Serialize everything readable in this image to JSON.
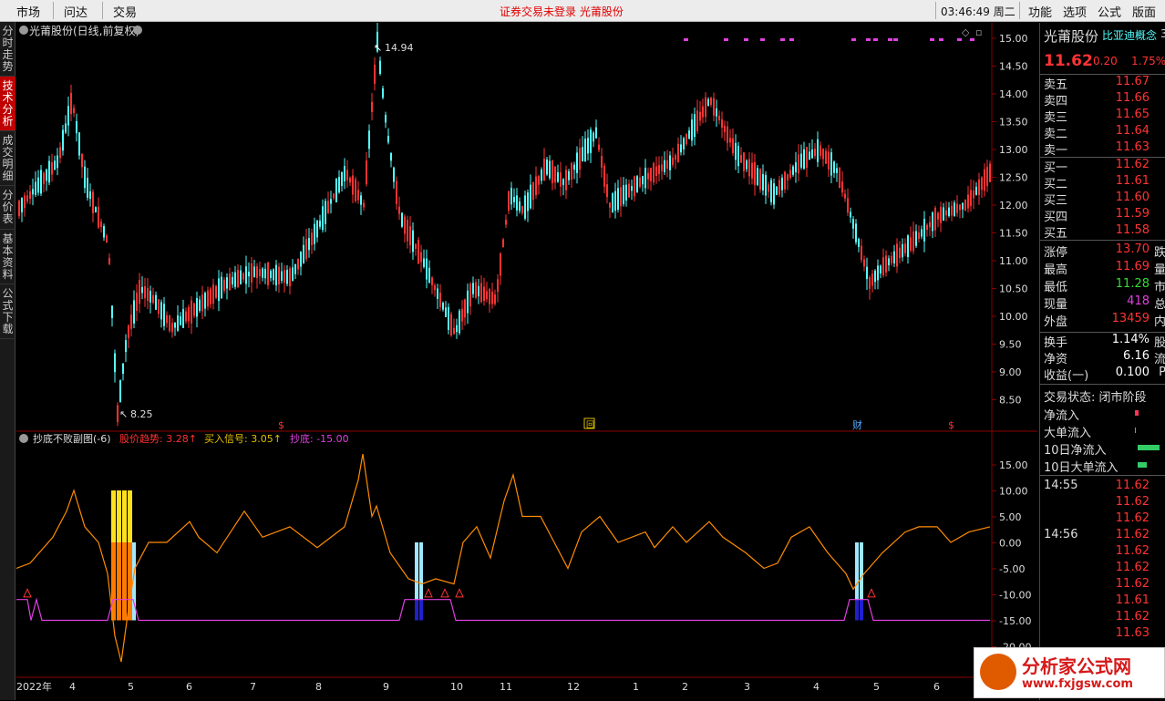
{
  "topbar": {
    "menu": [
      "市场",
      "问达",
      "交易"
    ],
    "center_text": "证券交易未登录  光莆股份",
    "clock": "03:46:49 周二",
    "right_menu": [
      "功能",
      "选项",
      "公式",
      "版面"
    ]
  },
  "left_tabs": [
    "分时走势",
    "技术分析",
    "成交明细",
    "分价表",
    "基本资料",
    "公式下载"
  ],
  "main_chart": {
    "title": "光莆股份(日线,前复权)",
    "high_label": "14.94",
    "low_label": "8.25",
    "y_ticks": [
      "15.00",
      "14.50",
      "14.00",
      "13.50",
      "13.00",
      "12.50",
      "12.00",
      "11.50",
      "11.00",
      "10.50",
      "10.00",
      "9.50",
      "9.00",
      "8.50"
    ],
    "event_markers": [
      "$",
      "回",
      "财",
      "$"
    ]
  },
  "sub_chart": {
    "title": "抄底不败副图(-6)",
    "trend_label": "股价趋势: 3.28↑",
    "buy_label": "买入信号: 3.05↑",
    "bottom_label": "抄底: -15.00",
    "y_ticks": [
      "15.00",
      "10.00",
      "5.00",
      "0.00",
      "-5.00",
      "-10.00",
      "-15.00",
      "-20.00"
    ]
  },
  "x_axis": [
    "2022年",
    "4",
    "5",
    "6",
    "7",
    "8",
    "9",
    "10",
    "11",
    "12",
    "1",
    "2",
    "3",
    "4",
    "5",
    "6"
  ],
  "quote": {
    "name": "光莆股份",
    "concept": "比亚迪概念",
    "concept_suffix": "3",
    "price": "11.62",
    "change": "0.20",
    "pct": "1.75%",
    "asks": [
      {
        "label": "卖五",
        "price": "11.67"
      },
      {
        "label": "卖四",
        "price": "11.66"
      },
      {
        "label": "卖三",
        "price": "11.65"
      },
      {
        "label": "卖二",
        "price": "11.64"
      },
      {
        "label": "卖一",
        "price": "11.63"
      }
    ],
    "bids": [
      {
        "label": "买一",
        "price": "11.62"
      },
      {
        "label": "买二",
        "price": "11.61"
      },
      {
        "label": "买三",
        "price": "11.60"
      },
      {
        "label": "买四",
        "price": "11.59"
      },
      {
        "label": "买五",
        "price": "11.58"
      }
    ],
    "stats": [
      {
        "label": "涨停",
        "value": "13.70",
        "color": "#ff3333",
        "suffix": "跌"
      },
      {
        "label": "最高",
        "value": "11.69",
        "color": "#ff3333",
        "suffix": "量"
      },
      {
        "label": "最低",
        "value": "11.28",
        "color": "#33dd33",
        "suffix": "市"
      },
      {
        "label": "现量",
        "value": "418",
        "color": "#e040e0",
        "suffix": "总"
      },
      {
        "label": "外盘",
        "value": "13459",
        "color": "#ff3333",
        "suffix": "内"
      }
    ],
    "stats2": [
      {
        "label": "换手",
        "value": "1.14%",
        "suffix": "股"
      },
      {
        "label": "净资",
        "value": "6.16",
        "suffix": "流"
      },
      {
        "label": "收益(一)",
        "value": "0.100",
        "suffix": "P"
      }
    ],
    "status_label": "交易状态: 闭市阶段",
    "flows": [
      {
        "label": "净流入",
        "color": "#ff3355"
      },
      {
        "label": "大单流入",
        "color": "#33cc66"
      },
      {
        "label": "10日净流入",
        "color": "#33cc66"
      },
      {
        "label": "10日大单流入",
        "color": "#33cc66"
      }
    ],
    "ticks": [
      {
        "time": "14:55",
        "price": "11.62"
      },
      {
        "time": "",
        "price": "11.62"
      },
      {
        "time": "",
        "price": "11.62"
      },
      {
        "time": "14:56",
        "price": "11.62"
      },
      {
        "time": "",
        "price": "11.62"
      },
      {
        "time": "",
        "price": "11.62"
      },
      {
        "time": "",
        "price": "11.62"
      },
      {
        "time": "",
        "price": "11.61"
      },
      {
        "time": "",
        "price": "11.62"
      },
      {
        "time": "",
        "price": "11.63"
      }
    ]
  },
  "watermark": {
    "title": "分析家公式网",
    "url": "www.fxjgsw.com"
  },
  "colors": {
    "up": "#ff3333",
    "down": "#54ffff",
    "trend_line": "#ff8c00",
    "bottom_line": "#e040e0"
  }
}
